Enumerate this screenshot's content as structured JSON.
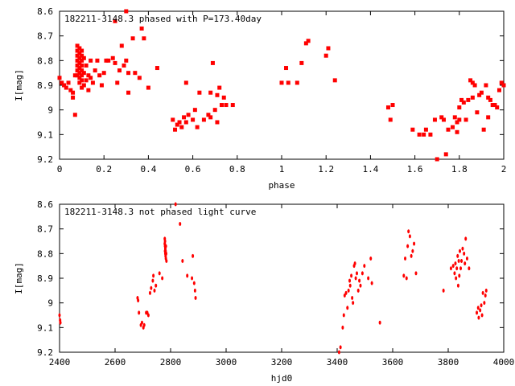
{
  "chart_data": [
    {
      "type": "scatter",
      "title": "182211-3148.3 phased with P=173.40day",
      "xlabel": "phase",
      "ylabel": "I[mag]",
      "xlim": [
        0,
        2
      ],
      "ylim": [
        8.6,
        9.2
      ],
      "y_inverted": true,
      "grid": false,
      "color": "#ff0000",
      "marker": "cross-dot",
      "x_ticks": [
        "0",
        "0.2",
        "0.4",
        "0.6",
        "0.8",
        "1",
        "1.2",
        "1.4",
        "1.6",
        "1.8",
        "2"
      ],
      "x_tick_values": [
        0,
        0.2,
        0.4,
        0.6,
        0.8,
        1.0,
        1.2,
        1.4,
        1.6,
        1.8,
        2.0
      ],
      "y_ticks": [
        "8.6",
        "8.7",
        "8.8",
        "8.9",
        "9",
        "9.1",
        "9.2"
      ],
      "y_tick_values": [
        8.6,
        8.7,
        8.8,
        8.9,
        9.0,
        9.1,
        9.2
      ],
      "points": [
        [
          0.0,
          8.87
        ],
        [
          0.01,
          8.89
        ],
        [
          0.02,
          8.9
        ],
        [
          0.03,
          8.91
        ],
        [
          0.04,
          8.89
        ],
        [
          0.05,
          8.92
        ],
        [
          0.06,
          8.93
        ],
        [
          0.06,
          8.95
        ],
        [
          0.07,
          8.86
        ],
        [
          0.07,
          9.02
        ],
        [
          0.08,
          8.74
        ],
        [
          0.08,
          8.76
        ],
        [
          0.08,
          8.78
        ],
        [
          0.08,
          8.8
        ],
        [
          0.08,
          8.82
        ],
        [
          0.08,
          8.84
        ],
        [
          0.08,
          8.86
        ],
        [
          0.09,
          8.75
        ],
        [
          0.09,
          8.77
        ],
        [
          0.09,
          8.79
        ],
        [
          0.09,
          8.81
        ],
        [
          0.09,
          8.83
        ],
        [
          0.09,
          8.85
        ],
        [
          0.09,
          8.87
        ],
        [
          0.09,
          8.89
        ],
        [
          0.1,
          8.76
        ],
        [
          0.1,
          8.78
        ],
        [
          0.1,
          8.8
        ],
        [
          0.1,
          8.82
        ],
        [
          0.1,
          8.84
        ],
        [
          0.1,
          8.86
        ],
        [
          0.1,
          8.88
        ],
        [
          0.1,
          8.91
        ],
        [
          0.11,
          8.79
        ],
        [
          0.11,
          8.85
        ],
        [
          0.11,
          8.9
        ],
        [
          0.12,
          8.82
        ],
        [
          0.12,
          8.88
        ],
        [
          0.13,
          8.86
        ],
        [
          0.13,
          8.92
        ],
        [
          0.14,
          8.8
        ],
        [
          0.14,
          8.87
        ],
        [
          0.15,
          8.89
        ],
        [
          0.16,
          8.84
        ],
        [
          0.17,
          8.8
        ],
        [
          0.18,
          8.86
        ],
        [
          0.19,
          8.9
        ],
        [
          0.2,
          8.85
        ],
        [
          0.21,
          8.8
        ],
        [
          0.22,
          8.8
        ],
        [
          0.24,
          8.79
        ],
        [
          0.25,
          8.81
        ],
        [
          0.25,
          8.64
        ],
        [
          0.26,
          8.89
        ],
        [
          0.27,
          8.84
        ],
        [
          0.28,
          8.74
        ],
        [
          0.29,
          8.82
        ],
        [
          0.3,
          8.6
        ],
        [
          0.3,
          8.8
        ],
        [
          0.31,
          8.85
        ],
        [
          0.31,
          8.93
        ],
        [
          0.33,
          8.71
        ],
        [
          0.34,
          8.85
        ],
        [
          0.36,
          8.87
        ],
        [
          0.37,
          8.67
        ],
        [
          0.38,
          8.71
        ],
        [
          0.4,
          8.91
        ],
        [
          0.44,
          8.83
        ],
        [
          0.51,
          9.04
        ],
        [
          0.52,
          9.08
        ],
        [
          0.53,
          9.06
        ],
        [
          0.54,
          9.05
        ],
        [
          0.55,
          9.07
        ],
        [
          0.56,
          9.03
        ],
        [
          0.57,
          9.05
        ],
        [
          0.57,
          8.89
        ],
        [
          0.58,
          9.02
        ],
        [
          0.6,
          9.04
        ],
        [
          0.61,
          9.0
        ],
        [
          0.62,
          9.07
        ],
        [
          0.63,
          8.93
        ],
        [
          0.65,
          9.04
        ],
        [
          0.67,
          9.02
        ],
        [
          0.68,
          8.93
        ],
        [
          0.68,
          9.03
        ],
        [
          0.69,
          8.81
        ],
        [
          0.7,
          9.0
        ],
        [
          0.71,
          8.94
        ],
        [
          0.71,
          9.05
        ],
        [
          0.72,
          8.91
        ],
        [
          0.73,
          8.98
        ],
        [
          0.74,
          8.95
        ],
        [
          0.75,
          8.98
        ],
        [
          0.78,
          8.98
        ],
        [
          1.0,
          8.89
        ],
        [
          1.02,
          8.83
        ],
        [
          1.03,
          8.89
        ],
        [
          1.07,
          8.89
        ],
        [
          1.09,
          8.81
        ],
        [
          1.11,
          8.73
        ],
        [
          1.12,
          8.72
        ],
        [
          1.2,
          8.78
        ],
        [
          1.21,
          8.75
        ],
        [
          1.24,
          8.88
        ],
        [
          1.48,
          8.99
        ],
        [
          1.49,
          9.04
        ],
        [
          1.5,
          8.98
        ],
        [
          1.59,
          9.08
        ],
        [
          1.62,
          9.1
        ],
        [
          1.64,
          9.1
        ],
        [
          1.65,
          9.08
        ],
        [
          1.67,
          9.1
        ],
        [
          1.69,
          9.04
        ],
        [
          1.7,
          9.2
        ],
        [
          1.72,
          9.03
        ],
        [
          1.73,
          9.04
        ],
        [
          1.74,
          9.18
        ],
        [
          1.75,
          9.08
        ],
        [
          1.77,
          9.07
        ],
        [
          1.78,
          9.03
        ],
        [
          1.79,
          9.05
        ],
        [
          1.79,
          9.09
        ],
        [
          1.8,
          8.99
        ],
        [
          1.8,
          9.04
        ],
        [
          1.81,
          8.96
        ],
        [
          1.82,
          8.97
        ],
        [
          1.83,
          9.04
        ],
        [
          1.84,
          8.96
        ],
        [
          1.85,
          8.88
        ],
        [
          1.86,
          8.89
        ],
        [
          1.86,
          8.95
        ],
        [
          1.87,
          8.9
        ],
        [
          1.88,
          9.01
        ],
        [
          1.89,
          8.94
        ],
        [
          1.9,
          8.93
        ],
        [
          1.91,
          9.08
        ],
        [
          1.92,
          8.9
        ],
        [
          1.93,
          8.95
        ],
        [
          1.93,
          9.03
        ],
        [
          1.94,
          8.96
        ],
        [
          1.95,
          8.98
        ],
        [
          1.96,
          8.98
        ],
        [
          1.97,
          8.99
        ],
        [
          1.98,
          8.92
        ],
        [
          1.99,
          8.89
        ],
        [
          2.0,
          8.9
        ]
      ]
    },
    {
      "type": "scatter",
      "title": "182211-3148.3 not phased light curve",
      "xlabel": "hjd0",
      "ylabel": "I[mag]",
      "xlim": [
        2400,
        4000
      ],
      "ylim": [
        8.6,
        9.2
      ],
      "y_inverted": true,
      "grid": false,
      "color": "#ff0000",
      "marker": "dot",
      "x_ticks": [
        "2400",
        "2600",
        "2800",
        "3000",
        "3200",
        "3400",
        "3600",
        "3800",
        "4000"
      ],
      "x_tick_values": [
        2400,
        2600,
        2800,
        3000,
        3200,
        3400,
        3600,
        3800,
        4000
      ],
      "y_ticks": [
        "8.6",
        "8.7",
        "8.8",
        "8.9",
        "9",
        "9.1",
        "9.2"
      ],
      "y_tick_values": [
        8.6,
        8.7,
        8.8,
        8.9,
        9.0,
        9.1,
        9.2
      ],
      "points": [
        [
          2400,
          9.05
        ],
        [
          2402,
          9.07
        ],
        [
          2403,
          9.08
        ],
        [
          2681,
          8.98
        ],
        [
          2683,
          8.99
        ],
        [
          2686,
          9.04
        ],
        [
          2693,
          9.09
        ],
        [
          2697,
          9.08
        ],
        [
          2702,
          9.1
        ],
        [
          2705,
          9.09
        ],
        [
          2712,
          9.04
        ],
        [
          2716,
          9.04
        ],
        [
          2720,
          9.05
        ],
        [
          2726,
          8.96
        ],
        [
          2730,
          8.94
        ],
        [
          2736,
          8.91
        ],
        [
          2738,
          8.89
        ],
        [
          2742,
          8.95
        ],
        [
          2747,
          8.93
        ],
        [
          2760,
          8.88
        ],
        [
          2770,
          8.9
        ],
        [
          2779,
          8.74
        ],
        [
          2779,
          8.76
        ],
        [
          2780,
          8.75
        ],
        [
          2780,
          8.77
        ],
        [
          2780,
          8.79
        ],
        [
          2781,
          8.78
        ],
        [
          2781,
          8.8
        ],
        [
          2782,
          8.79
        ],
        [
          2782,
          8.81
        ],
        [
          2783,
          8.77
        ],
        [
          2783,
          8.82
        ],
        [
          2784,
          8.8
        ],
        [
          2785,
          8.83
        ],
        [
          2818,
          8.6
        ],
        [
          2834,
          8.68
        ],
        [
          2843,
          8.83
        ],
        [
          2860,
          8.89
        ],
        [
          2877,
          8.9
        ],
        [
          2880,
          8.81
        ],
        [
          2885,
          8.92
        ],
        [
          2888,
          8.95
        ],
        [
          2890,
          8.98
        ],
        [
          3407,
          9.2
        ],
        [
          3412,
          9.18
        ],
        [
          3420,
          9.1
        ],
        [
          3424,
          9.05
        ],
        [
          3427,
          8.97
        ],
        [
          3432,
          8.96
        ],
        [
          3437,
          9.02
        ],
        [
          3441,
          8.95
        ],
        [
          3445,
          8.91
        ],
        [
          3447,
          8.93
        ],
        [
          3451,
          8.89
        ],
        [
          3454,
          8.98
        ],
        [
          3457,
          9.0
        ],
        [
          3461,
          8.85
        ],
        [
          3464,
          8.84
        ],
        [
          3467,
          8.9
        ],
        [
          3471,
          8.88
        ],
        [
          3476,
          8.95
        ],
        [
          3480,
          8.91
        ],
        [
          3484,
          8.93
        ],
        [
          3491,
          8.88
        ],
        [
          3498,
          8.85
        ],
        [
          3512,
          8.9
        ],
        [
          3521,
          8.82
        ],
        [
          3525,
          8.92
        ],
        [
          3554,
          9.08
        ],
        [
          3640,
          8.89
        ],
        [
          3645,
          8.82
        ],
        [
          3650,
          8.9
        ],
        [
          3654,
          8.77
        ],
        [
          3657,
          8.71
        ],
        [
          3662,
          8.73
        ],
        [
          3667,
          8.81
        ],
        [
          3672,
          8.79
        ],
        [
          3677,
          8.76
        ],
        [
          3684,
          8.88
        ],
        [
          3783,
          8.95
        ],
        [
          3810,
          8.86
        ],
        [
          3818,
          8.85
        ],
        [
          3823,
          8.88
        ],
        [
          3826,
          8.84
        ],
        [
          3828,
          8.9
        ],
        [
          3831,
          8.86
        ],
        [
          3834,
          8.81
        ],
        [
          3836,
          8.93
        ],
        [
          3838,
          8.83
        ],
        [
          3840,
          8.89
        ],
        [
          3842,
          8.79
        ],
        [
          3845,
          8.86
        ],
        [
          3848,
          8.83
        ],
        [
          3852,
          8.78
        ],
        [
          3857,
          8.8
        ],
        [
          3860,
          8.84
        ],
        [
          3863,
          8.74
        ],
        [
          3868,
          8.82
        ],
        [
          3875,
          8.86
        ],
        [
          3903,
          9.04
        ],
        [
          3908,
          9.02
        ],
        [
          3910,
          9.06
        ],
        [
          3915,
          9.03
        ],
        [
          3919,
          9.01
        ],
        [
          3922,
          9.05
        ],
        [
          3925,
          8.96
        ],
        [
          3930,
          9.0
        ],
        [
          3934,
          8.97
        ],
        [
          3937,
          8.95
        ]
      ]
    }
  ]
}
